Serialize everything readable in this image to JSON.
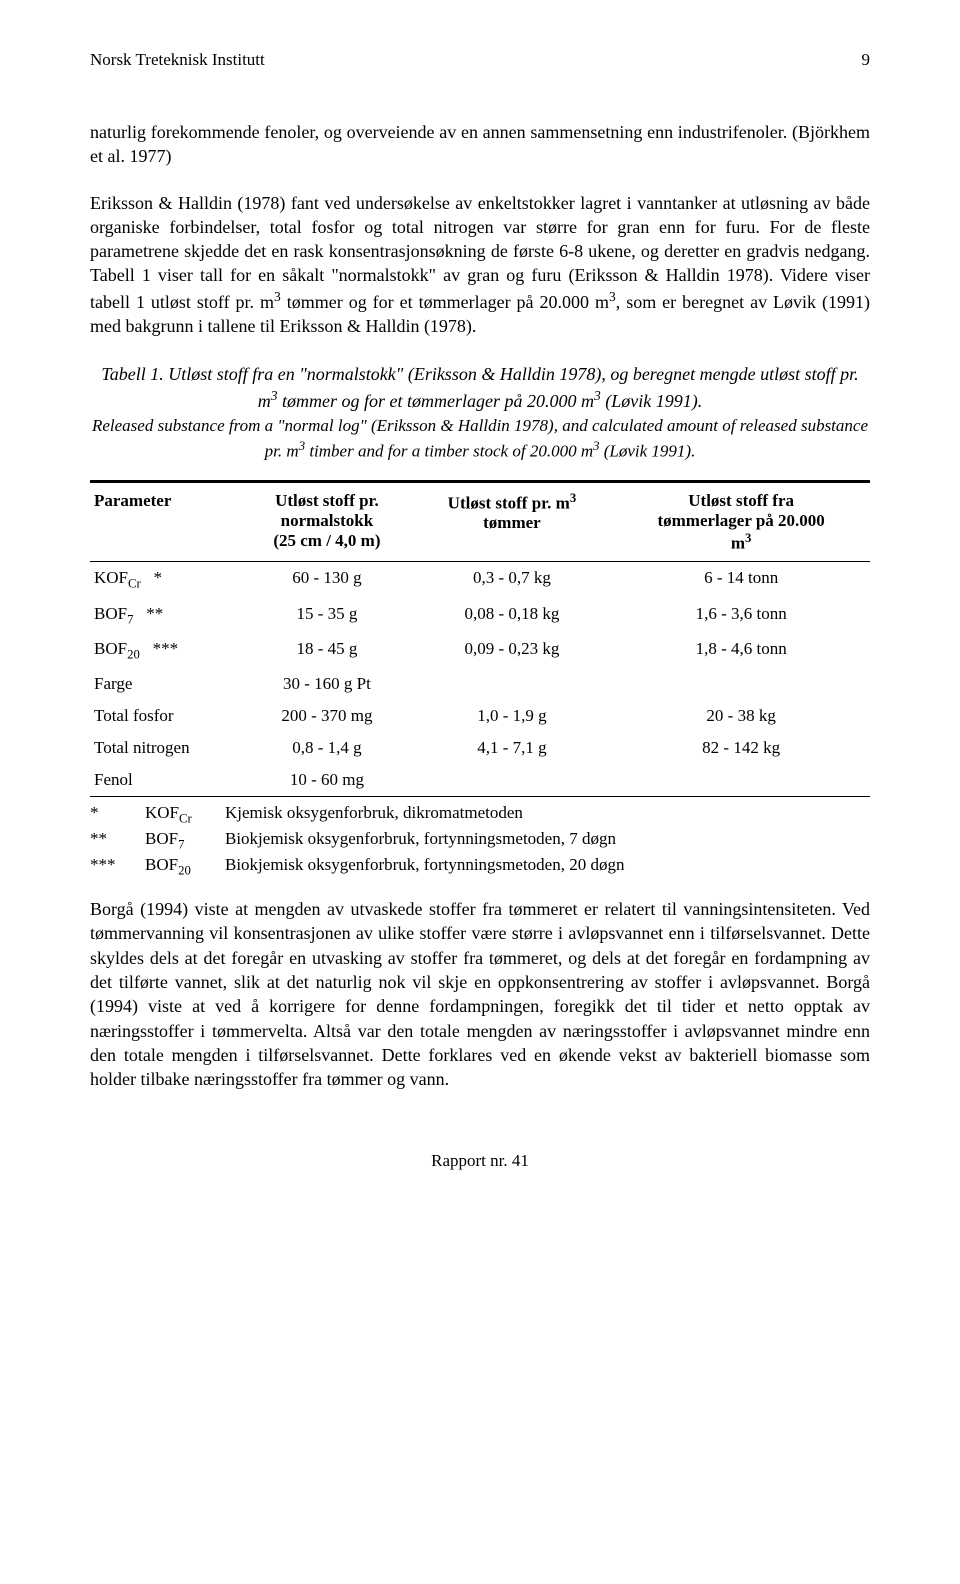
{
  "header": {
    "institute": "Norsk Treteknisk Institutt",
    "page_number": "9"
  },
  "paragraph_1": {
    "pre_1": "naturlig forekommende fenoler, og overveiende av en annen sammensetning enn industrifenoler. (Björkhem et al. 1977)",
    "pre_2a": "Eriksson & Halldin (1978) fant ved undersøkelse av enkeltstokker lagret i vanntanker at utløsning av både organiske forbindelser, total fosfor og total nitrogen var større for gran enn for furu. For de fleste parametrene skjedde det en rask konsentrasjonsøkning de første 6-8 ukene, og deretter en gradvis nedgang. Tabell 1 viser tall for en såkalt \"normalstokk\" av gran og furu (Eriksson & Halldin 1978). Videre viser tabell 1 utløst stoff pr. m",
    "pre_2b": " tømmer og for et tømmerlager på 20.000 m",
    "pre_2c": ", som er beregnet av Løvik (1991) med bakgrunn i tallene til Eriksson & Halldin (1978)."
  },
  "table_caption": {
    "main_a": "Tabell 1. Utløst stoff fra en \"normalstokk\" (Eriksson & Halldin 1978), og beregnet mengde utløst stoff pr. m",
    "main_b": " tømmer og for et tømmerlager på 20.000 m",
    "main_c": " (Løvik 1991).",
    "sub_a": "Released substance from a \"normal log\" (Eriksson & Halldin 1978), and calculated amount of released substance pr. m",
    "sub_b": " timber and for a timber stock of 20.000 m",
    "sub_c": " (Løvik 1991)."
  },
  "table": {
    "columns": {
      "c1": "Parameter",
      "c2_l1": "Utløst stoff pr.",
      "c2_l2": "normalstokk",
      "c2_l3": "(25 cm / 4,0 m)",
      "c3_l1": "Utløst stoff pr. m",
      "c3_l2": "tømmer",
      "c4_l1": "Utløst stoff fra",
      "c4_l2": "tømmerlager på 20.000",
      "c4_l3": "m"
    },
    "rows": [
      {
        "p": "KOF",
        "psub": "Cr",
        "star": "*",
        "c2": "60 - 130 g",
        "c3": "0,3 - 0,7 kg",
        "c4": "6 - 14 tonn"
      },
      {
        "p": "BOF",
        "psub": "7",
        "star": "**",
        "c2": "15 - 35 g",
        "c3": "0,08 - 0,18 kg",
        "c4": "1,6 - 3,6 tonn"
      },
      {
        "p": "BOF",
        "psub": "20",
        "star": "***",
        "c2": "18 - 45 g",
        "c3": "0,09 - 0,23 kg",
        "c4": "1,8 - 4,6 tonn"
      },
      {
        "p": "Farge",
        "c2": "30 - 160 g  Pt",
        "c3": "",
        "c4": ""
      },
      {
        "p": "Total fosfor",
        "c2": "200 - 370 mg",
        "c3": "1,0 - 1,9 g",
        "c4": "20 - 38 kg"
      },
      {
        "p": "Total nitrogen",
        "c2": "0,8 - 1,4 g",
        "c3": "4,1 - 7,1 g",
        "c4": "82 - 142 kg"
      },
      {
        "p": "Fenol",
        "c2": "10 - 60 mg",
        "c3": "",
        "c4": ""
      }
    ],
    "notes": [
      {
        "sym": "*",
        "abbr": "KOF",
        "abbr_sub": "Cr",
        "text": "Kjemisk oksygenforbruk, dikromatmetoden"
      },
      {
        "sym": "**",
        "abbr": "BOF",
        "abbr_sub": "7",
        "text": "Biokjemisk oksygenforbruk, fortynningsmetoden, 7 døgn"
      },
      {
        "sym": "***",
        "abbr": "BOF",
        "abbr_sub": "20",
        "text": "Biokjemisk oksygenforbruk, fortynningsmetoden, 20 døgn"
      }
    ]
  },
  "paragraph_3": "Borgå (1994) viste at mengden av utvaskede stoffer fra tømmeret er relatert til vanningsintensiteten. Ved tømmervanning vil konsentrasjonen av ulike stoffer være større i avløpsvannet enn i tilførselsvannet. Dette skyldes dels at det foregår en utvasking av stoffer fra tømmeret, og dels at det foregår en fordampning av det tilførte vannet, slik at det naturlig nok vil skje en oppkonsentrering av stoffer i avløpsvannet. Borgå (1994) viste at ved å korrigere for denne fordampningen, foregikk det til tider et netto opptak av næringsstoffer i tømmervelta. Altså var den totale mengden av næringsstoffer i avløpsvannet mindre enn den totale mengden i tilførselsvannet. Dette forklares ved en økende vekst av bakteriell biomasse som holder tilbake næringsstoffer fra tømmer og vann.",
  "footer": "Rapport nr. 41"
}
